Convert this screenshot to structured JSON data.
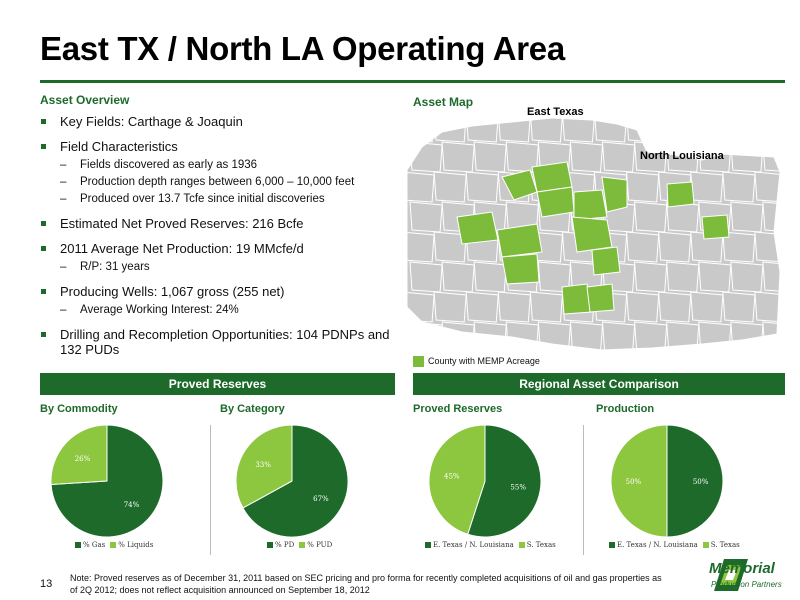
{
  "title": "East TX / North LA Operating Area",
  "overview": {
    "heading": "Asset Overview",
    "bullets": [
      {
        "text": "Key Fields: Carthage & Joaquin",
        "subs": []
      },
      {
        "text": "Field Characteristics",
        "subs": [
          "Fields discovered as early as 1936",
          "Production depth ranges between 6,000 – 10,000 feet",
          "Produced over 13.7 Tcfe since initial discoveries"
        ]
      },
      {
        "text": "Estimated Net Proved Reserves: 216 Bcfe",
        "subs": []
      },
      {
        "text": "2011 Average Net Production: 19 MMcfe/d",
        "subs": [
          "R/P: 31 years"
        ]
      },
      {
        "text": "Producing Wells: 1,067 gross (255 net)",
        "subs": [
          "Average Working Interest: 24%"
        ]
      },
      {
        "text": "Drilling and Recompletion Opportunities: 104 PDNPs and 132 PUDs",
        "subs": []
      }
    ]
  },
  "map": {
    "heading": "Asset Map",
    "label_east_texas": "East Texas",
    "label_north_louisiana": "North Louisiana",
    "legend": "County with MEMP Acreage",
    "colors": {
      "acreage": "#7dbb3a",
      "county": "#c9c9c9",
      "border": "#ffffff"
    }
  },
  "sections": {
    "proved_reserves": "Proved Reserves",
    "regional": "Regional Asset Comparison",
    "by_commodity": "By Commodity",
    "by_category": "By Category",
    "proved_reserves_sub": "Proved Reserves",
    "production_sub": "Production"
  },
  "chart_data": [
    {
      "type": "pie",
      "title": "By Commodity",
      "labels": [
        "% Gas",
        "% Liquids"
      ],
      "values": [
        74,
        26
      ],
      "display": [
        "74%",
        "26%"
      ],
      "colors": [
        "#1d6a2b",
        "#8dc63f"
      ]
    },
    {
      "type": "pie",
      "title": "By Category",
      "labels": [
        "% PD",
        "% PUD"
      ],
      "values": [
        67,
        33
      ],
      "display": [
        "67%",
        "33%"
      ],
      "colors": [
        "#1d6a2b",
        "#8dc63f"
      ]
    },
    {
      "type": "pie",
      "title": "Proved Reserves",
      "labels": [
        "E. Texas / N. Louisiana",
        "S. Texas"
      ],
      "values": [
        55,
        45
      ],
      "display": [
        "55%",
        "45%"
      ],
      "colors": [
        "#1d6a2b",
        "#8dc63f"
      ]
    },
    {
      "type": "pie",
      "title": "Production",
      "labels": [
        "E. Texas / N. Louisiana",
        "S. Texas"
      ],
      "values": [
        50,
        50
      ],
      "display": [
        "50%",
        "50%"
      ],
      "colors": [
        "#1d6a2b",
        "#8dc63f"
      ]
    }
  ],
  "footer": {
    "page_number": "13",
    "note": "Note: Proved reserves as of December 31, 2011 based on SEC pricing and pro forma for recently completed acquisitions of oil and gas properties as of 2Q 2012; does not reflect acquisition announced on September 18, 2012",
    "logo_name": "Memorial",
    "logo_sub": "Production Partners"
  }
}
